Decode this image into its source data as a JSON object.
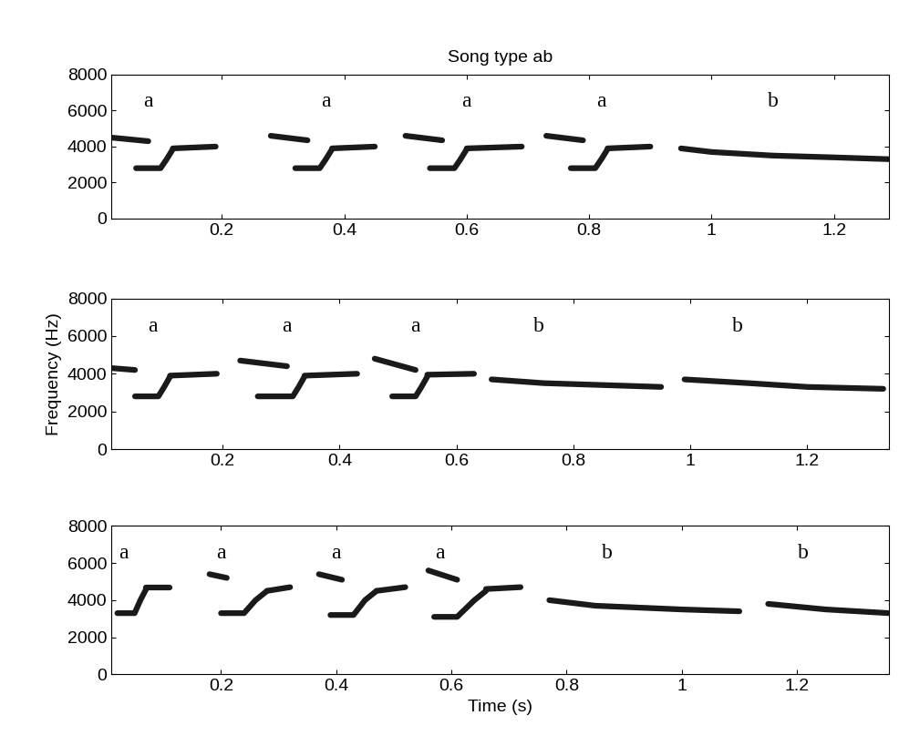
{
  "chart_data": [
    {
      "type": "line",
      "title": "Song type ab",
      "color": "#1a1a1a",
      "xlim": [
        0.02,
        1.29
      ],
      "ylim": [
        0,
        8000
      ],
      "xticks": [
        0.2,
        0.4,
        0.6,
        0.8,
        1,
        1.2
      ],
      "yticks": [
        0,
        2000,
        4000,
        6000,
        8000
      ],
      "strokes": [
        {
          "x": [
            0.02,
            0.08
          ],
          "y": [
            4500,
            4300
          ]
        },
        {
          "x": [
            0.06,
            0.1,
            0.11,
            0.12
          ],
          "y": [
            2800,
            2800,
            3300,
            3850
          ]
        },
        {
          "x": [
            0.12,
            0.19
          ],
          "y": [
            3900,
            4000
          ]
        },
        {
          "x": [
            0.28,
            0.34
          ],
          "y": [
            4600,
            4350
          ]
        },
        {
          "x": [
            0.32,
            0.36,
            0.37,
            0.38
          ],
          "y": [
            2800,
            2800,
            3300,
            3850
          ]
        },
        {
          "x": [
            0.38,
            0.45
          ],
          "y": [
            3900,
            4000
          ]
        },
        {
          "x": [
            0.5,
            0.56
          ],
          "y": [
            4600,
            4350
          ]
        },
        {
          "x": [
            0.54,
            0.58,
            0.59,
            0.6
          ],
          "y": [
            2800,
            2800,
            3300,
            3850
          ]
        },
        {
          "x": [
            0.6,
            0.69
          ],
          "y": [
            3900,
            4000
          ]
        },
        {
          "x": [
            0.73,
            0.79
          ],
          "y": [
            4600,
            4350
          ]
        },
        {
          "x": [
            0.77,
            0.81,
            0.82,
            0.83
          ],
          "y": [
            2800,
            2800,
            3300,
            3850
          ]
        },
        {
          "x": [
            0.83,
            0.9
          ],
          "y": [
            3900,
            4000
          ]
        },
        {
          "x": [
            0.95,
            1.0,
            1.1,
            1.2,
            1.29
          ],
          "y": [
            3900,
            3700,
            3500,
            3400,
            3300
          ]
        }
      ],
      "annotations": [
        {
          "text": "a",
          "x": 0.08,
          "y": 6500
        },
        {
          "text": "a",
          "x": 0.37,
          "y": 6500
        },
        {
          "text": "a",
          "x": 0.6,
          "y": 6500
        },
        {
          "text": "a",
          "x": 0.82,
          "y": 6500
        },
        {
          "text": "b",
          "x": 1.1,
          "y": 6500
        }
      ]
    },
    {
      "type": "line",
      "y_label": "Frequency (Hz)",
      "color": "#1a1a1a",
      "xlim": [
        0.01,
        1.34
      ],
      "ylim": [
        0,
        8000
      ],
      "xticks": [
        0.2,
        0.4,
        0.6,
        0.8,
        1,
        1.2
      ],
      "yticks": [
        0,
        2000,
        4000,
        6000,
        8000
      ],
      "strokes": [
        {
          "x": [
            0.01,
            0.05
          ],
          "y": [
            4300,
            4200
          ]
        },
        {
          "x": [
            0.05,
            0.09,
            0.1,
            0.11
          ],
          "y": [
            2800,
            2800,
            3300,
            3850
          ]
        },
        {
          "x": [
            0.11,
            0.19
          ],
          "y": [
            3900,
            4000
          ]
        },
        {
          "x": [
            0.23,
            0.31
          ],
          "y": [
            4700,
            4400
          ]
        },
        {
          "x": [
            0.26,
            0.32,
            0.33,
            0.34
          ],
          "y": [
            2800,
            2800,
            3300,
            3850
          ]
        },
        {
          "x": [
            0.34,
            0.43
          ],
          "y": [
            3900,
            4000
          ]
        },
        {
          "x": [
            0.46,
            0.53
          ],
          "y": [
            4800,
            4200
          ]
        },
        {
          "x": [
            0.49,
            0.53,
            0.54,
            0.55
          ],
          "y": [
            2800,
            2800,
            3300,
            3850
          ]
        },
        {
          "x": [
            0.55,
            0.63
          ],
          "y": [
            3950,
            4000
          ]
        },
        {
          "x": [
            0.66,
            0.75,
            0.85,
            0.95
          ],
          "y": [
            3700,
            3500,
            3400,
            3300
          ]
        },
        {
          "x": [
            0.99,
            1.1,
            1.2,
            1.33
          ],
          "y": [
            3700,
            3500,
            3300,
            3200
          ]
        }
      ],
      "annotations": [
        {
          "text": "a",
          "x": 0.08,
          "y": 6500
        },
        {
          "text": "a",
          "x": 0.31,
          "y": 6500
        },
        {
          "text": "a",
          "x": 0.53,
          "y": 6500
        },
        {
          "text": "b",
          "x": 0.74,
          "y": 6500
        },
        {
          "text": "b",
          "x": 1.08,
          "y": 6500
        }
      ]
    },
    {
      "type": "line",
      "x_label": "Time (s)",
      "color": "#1a1a1a",
      "xlim": [
        0.01,
        1.36
      ],
      "ylim": [
        0,
        8000
      ],
      "xticks": [
        0.2,
        0.4,
        0.6,
        0.8,
        1,
        1.2
      ],
      "yticks": [
        0,
        2000,
        4000,
        6000,
        8000
      ],
      "strokes": [
        {
          "x": [
            0.02,
            0.05,
            0.06,
            0.07
          ],
          "y": [
            3300,
            3300,
            4000,
            4600
          ]
        },
        {
          "x": [
            0.07,
            0.11
          ],
          "y": [
            4700,
            4700
          ]
        },
        {
          "x": [
            0.18,
            0.21
          ],
          "y": [
            5400,
            5200
          ]
        },
        {
          "x": [
            0.2,
            0.24,
            0.26,
            0.28
          ],
          "y": [
            3300,
            3300,
            4000,
            4500
          ]
        },
        {
          "x": [
            0.28,
            0.32
          ],
          "y": [
            4500,
            4700
          ]
        },
        {
          "x": [
            0.37,
            0.41
          ],
          "y": [
            5400,
            5100
          ]
        },
        {
          "x": [
            0.39,
            0.43,
            0.45,
            0.47
          ],
          "y": [
            3200,
            3200,
            4000,
            4500
          ]
        },
        {
          "x": [
            0.47,
            0.52
          ],
          "y": [
            4500,
            4700
          ]
        },
        {
          "x": [
            0.56,
            0.61
          ],
          "y": [
            5600,
            5100
          ]
        },
        {
          "x": [
            0.57,
            0.61,
            0.64,
            0.66
          ],
          "y": [
            3100,
            3100,
            4000,
            4500
          ]
        },
        {
          "x": [
            0.66,
            0.72
          ],
          "y": [
            4600,
            4700
          ]
        },
        {
          "x": [
            0.77,
            0.85,
            1.0,
            1.1
          ],
          "y": [
            4000,
            3700,
            3500,
            3400
          ]
        },
        {
          "x": [
            1.15,
            1.25,
            1.36
          ],
          "y": [
            3800,
            3500,
            3300
          ]
        }
      ],
      "annotations": [
        {
          "text": "a",
          "x": 0.03,
          "y": 6500
        },
        {
          "text": "a",
          "x": 0.2,
          "y": 6500
        },
        {
          "text": "a",
          "x": 0.4,
          "y": 6500
        },
        {
          "text": "a",
          "x": 0.58,
          "y": 6500
        },
        {
          "text": "b",
          "x": 0.87,
          "y": 6500
        },
        {
          "text": "b",
          "x": 1.21,
          "y": 6500
        }
      ]
    }
  ]
}
